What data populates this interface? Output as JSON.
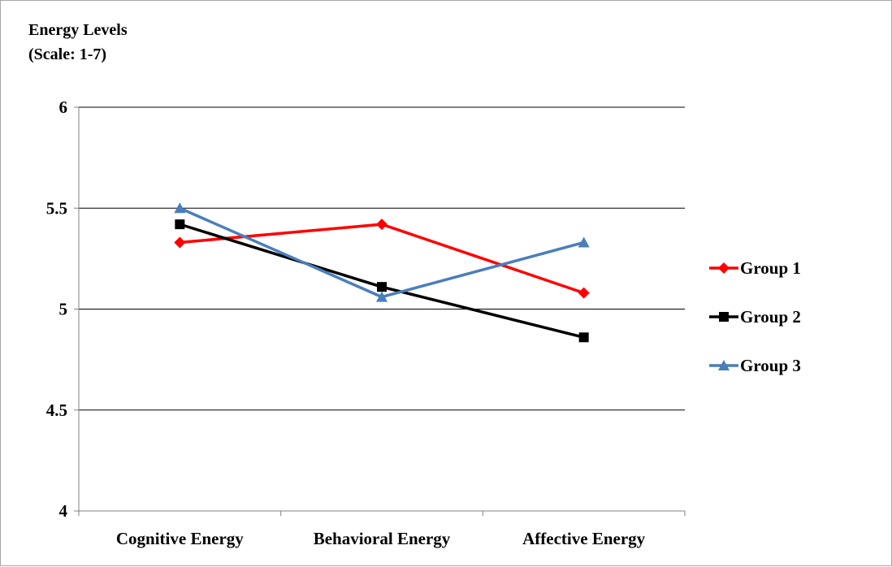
{
  "chart_data": {
    "type": "line",
    "title": "",
    "ylabel_lines": [
      "Energy Levels",
      "(Scale: 1-7)"
    ],
    "xlabel": "",
    "categories": [
      "Cognitive Energy",
      "Behavioral Energy",
      "Affective Energy"
    ],
    "ylim": [
      4,
      6
    ],
    "yticks": [
      4,
      4.5,
      5,
      5.5,
      6
    ],
    "ytick_labels": [
      "4",
      "4.5",
      "5",
      "5.5",
      "6"
    ],
    "grid": "horizontal",
    "legend_position": "right",
    "series": [
      {
        "name": "Group 1",
        "values": [
          5.33,
          5.42,
          5.08
        ],
        "color": "#ff0000",
        "marker": "diamond"
      },
      {
        "name": "Group 2",
        "values": [
          5.42,
          5.11,
          4.86
        ],
        "color": "#000000",
        "marker": "square"
      },
      {
        "name": "Group 3",
        "values": [
          5.5,
          5.06,
          5.33
        ],
        "color": "#4a7ebb",
        "marker": "triangle"
      }
    ]
  }
}
